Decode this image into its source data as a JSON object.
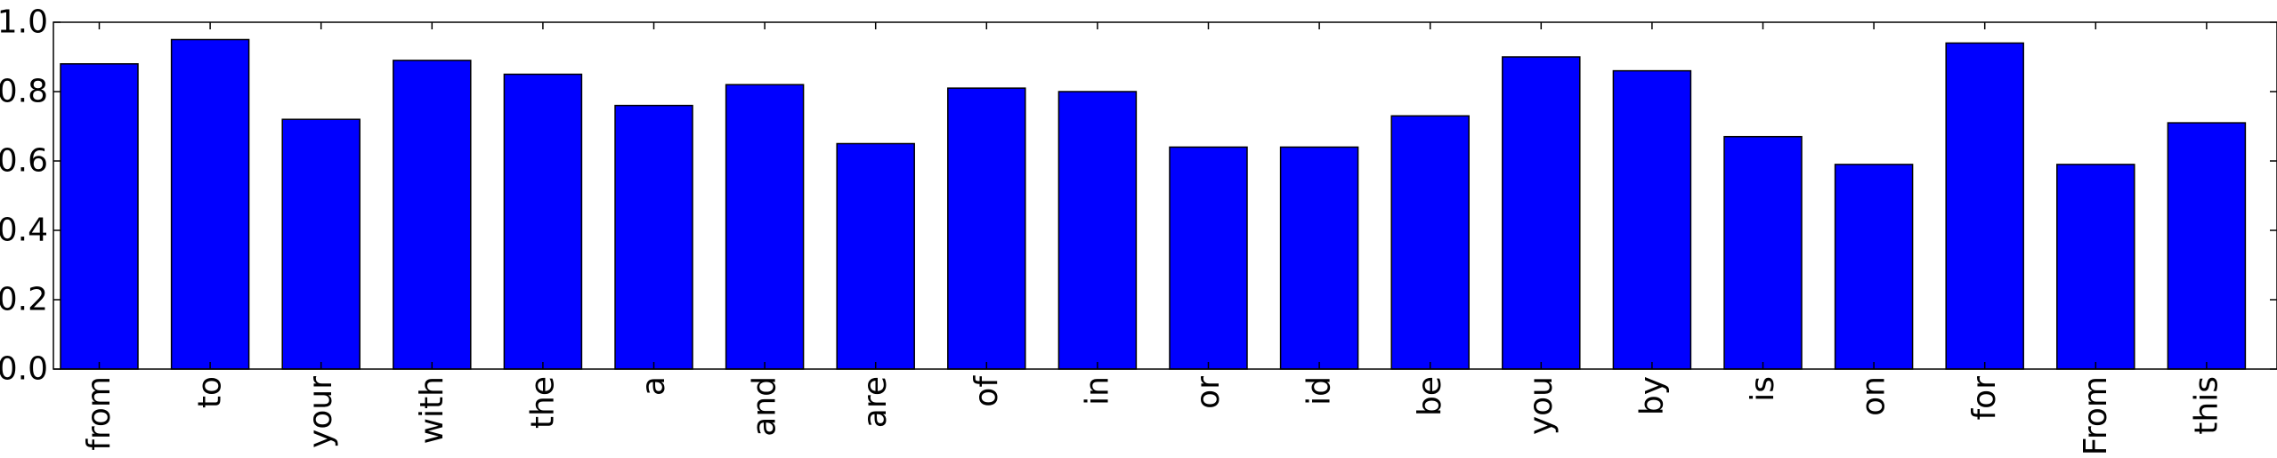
{
  "chart_data": {
    "type": "bar",
    "categories": [
      "from",
      "to",
      "your",
      "with",
      "the",
      "a",
      "and",
      "are",
      "of",
      "in",
      "or",
      "id",
      "be",
      "you",
      "by",
      "is",
      "on",
      "for",
      "From",
      "this"
    ],
    "values": [
      0.88,
      0.95,
      0.72,
      0.89,
      0.85,
      0.76,
      0.82,
      0.65,
      0.81,
      0.8,
      0.64,
      0.64,
      0.73,
      0.9,
      0.86,
      0.67,
      0.59,
      0.94,
      0.59,
      0.71
    ],
    "yticks": [
      "0.0",
      "0.2",
      "0.4",
      "0.6",
      "0.8",
      "1.0"
    ],
    "ylim": [
      0,
      1.0
    ],
    "title": "",
    "xlabel": "",
    "ylabel": "",
    "grid": false,
    "bar_color": "#0000ff"
  }
}
